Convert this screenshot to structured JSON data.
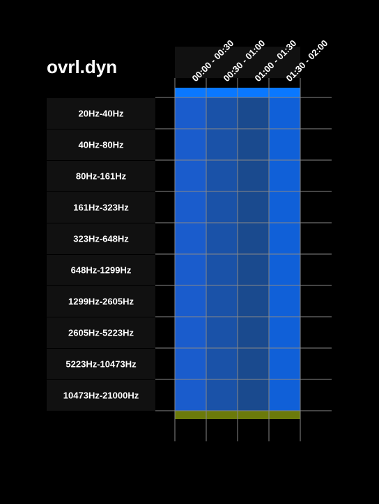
{
  "chart_data": {
    "type": "heatmap",
    "title": "ovrl.dyn",
    "columns": [
      "00:00 - 00:30",
      "00:30 - 01:00",
      "01:00 - 01:30",
      "01:30 - 02:00"
    ],
    "rows": [
      "20Hz-40Hz",
      "40Hz-80Hz",
      "80Hz-161Hz",
      "161Hz-323Hz",
      "323Hz-648Hz",
      "648Hz-1299Hz",
      "1299Hz-2605Hz",
      "2605Hz-5223Hz",
      "5223Hz-10473Hz",
      "10473Hz-21000Hz"
    ],
    "column_colors": [
      "#1a5ccc",
      "#1a52a8",
      "#1a4a8e",
      "#1060d8"
    ],
    "overall_top_color": "#0a78ff",
    "overall_bottom_color": "#6b7a0a",
    "grid_color": "#888888",
    "label_background": "#111111"
  }
}
